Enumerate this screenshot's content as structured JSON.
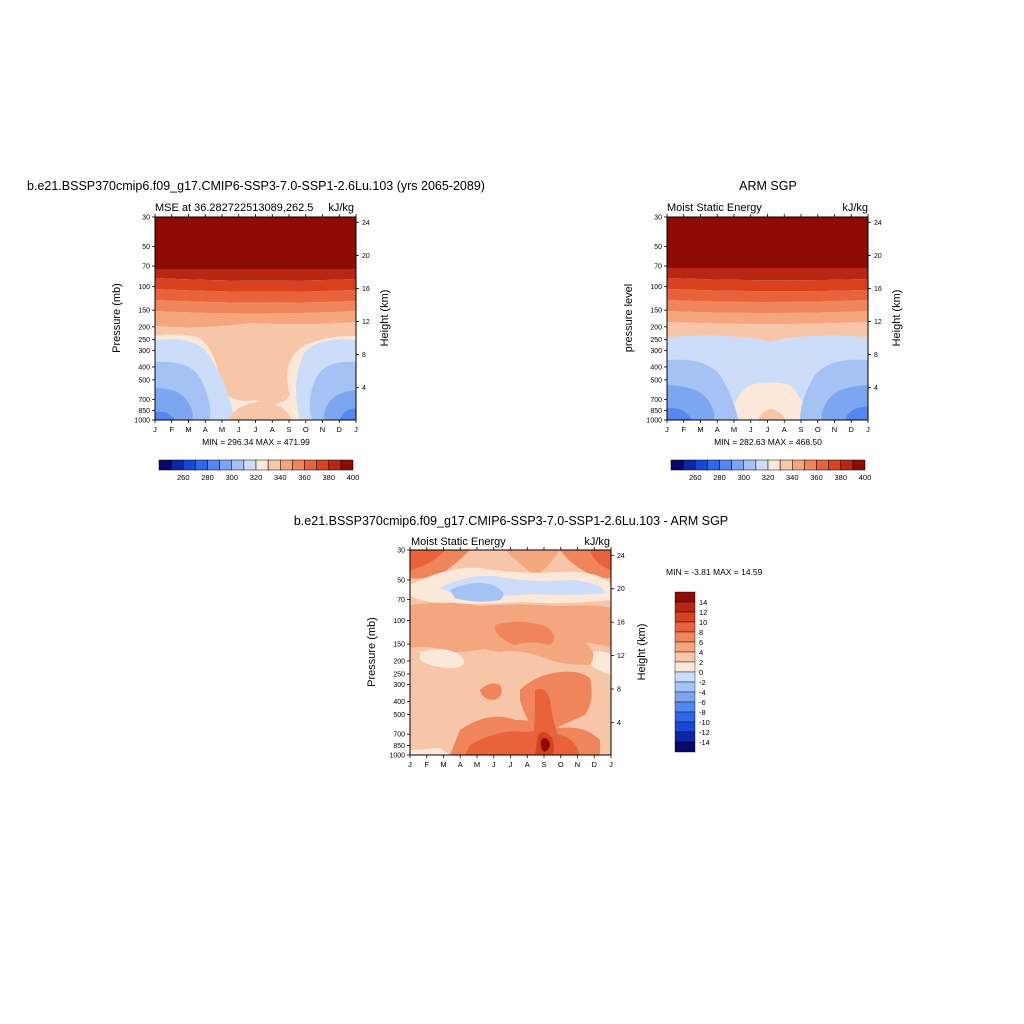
{
  "chart_data": [
    {
      "type": "heatmap",
      "title": "b.e21.BSSP370cmip6.f09_g17.CMIP6-SSP3-7.0-SSP1-2.6Lu.103 (yrs 2065-2089)",
      "left_subtitle": "MSE at 36.282722513089,262.5",
      "right_subtitle": "kJ/kg",
      "ylabel": "Pressure (mb)",
      "y2label": "Height (km)",
      "xticks": [
        "J",
        "F",
        "M",
        "A",
        "M",
        "J",
        "J",
        "A",
        "S",
        "O",
        "N",
        "D",
        "J"
      ],
      "yticks": [
        "30",
        "50",
        "70",
        "100",
        "150",
        "200",
        "250",
        "300",
        "400",
        "500",
        "700",
        "850",
        "1000"
      ],
      "y2ticks": [
        "24",
        "20",
        "16",
        "12",
        "8",
        "4"
      ],
      "stats": "MIN = 296.34 MAX = 471.99",
      "colorbar_labels": [
        "260",
        "280",
        "300",
        "320",
        "340",
        "360",
        "380",
        "400"
      ]
    },
    {
      "type": "heatmap",
      "title": "ARM SGP",
      "left_subtitle": "Moist Static Energy",
      "right_subtitle": "kJ/kg",
      "ylabel": "pressure level",
      "y2label": "Height (km)",
      "xticks": [
        "J",
        "F",
        "M",
        "A",
        "M",
        "J",
        "J",
        "A",
        "S",
        "O",
        "N",
        "D",
        "J"
      ],
      "yticks": [
        "30",
        "50",
        "70",
        "100",
        "150",
        "200",
        "250",
        "300",
        "400",
        "500",
        "700",
        "850",
        "1000"
      ],
      "y2ticks": [
        "24",
        "20",
        "16",
        "12",
        "8",
        "4"
      ],
      "stats": "MIN = 282.63 MAX = 468.50",
      "colorbar_labels": [
        "260",
        "280",
        "300",
        "320",
        "340",
        "360",
        "380",
        "400"
      ]
    },
    {
      "type": "heatmap",
      "title": "b.e21.BSSP370cmip6.f09_g17.CMIP6-SSP3-7.0-SSP1-2.6Lu.103 - ARM SGP",
      "left_subtitle": "Moist Static Energy",
      "right_subtitle": "kJ/kg",
      "ylabel": "Pressure (mb)",
      "y2label": "Height (km)",
      "xticks": [
        "J",
        "F",
        "M",
        "A",
        "M",
        "J",
        "J",
        "A",
        "S",
        "O",
        "N",
        "D",
        "J"
      ],
      "yticks": [
        "30",
        "50",
        "70",
        "100",
        "150",
        "200",
        "250",
        "300",
        "400",
        "500",
        "700",
        "850",
        "1000"
      ],
      "y2ticks": [
        "24",
        "20",
        "16",
        "12",
        "8",
        "4"
      ],
      "stats": "MIN =  -3.81 MAX =  14.59",
      "colorbar_labels": [
        "14",
        "12",
        "10",
        "8",
        "6",
        "4",
        "2",
        "0",
        "-2",
        "-4",
        "-6",
        "-8",
        "-10",
        "-12",
        "-14"
      ]
    }
  ],
  "colors": {
    "mse_scale": [
      "#08086b",
      "#0b27a8",
      "#1848d4",
      "#2f67e6",
      "#5588ec",
      "#7ca6f0",
      "#a4c2f4",
      "#cbddf8",
      "#fbe8d8",
      "#f7c6a8",
      "#f4a67e",
      "#f0855b",
      "#e8633c",
      "#d8421f",
      "#b72713",
      "#8e0a04"
    ],
    "diff_scale": [
      "#8e0a04",
      "#b72713",
      "#d8421f",
      "#e8633c",
      "#f0855b",
      "#f4a67e",
      "#f7c6a8",
      "#fbe8d8",
      "#cbddf8",
      "#a4c2f4",
      "#7ca6f0",
      "#5588ec",
      "#2f67e6",
      "#1848d4",
      "#0b27a8",
      "#08086b"
    ]
  }
}
